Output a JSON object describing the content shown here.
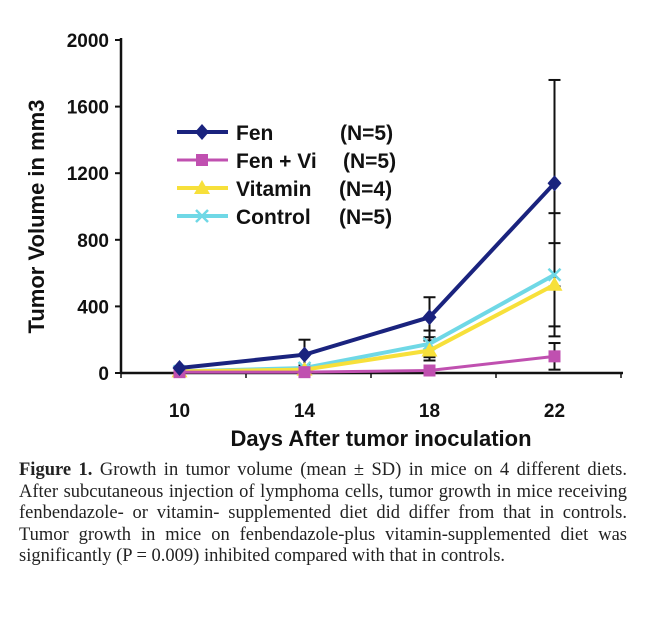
{
  "chart_data": {
    "type": "line",
    "title": "",
    "xlabel": "Days After tumor inoculation",
    "ylabel": "Tumor Volume in mm3",
    "categories": [
      "10",
      "14",
      "18",
      "22"
    ],
    "ylim": [
      0,
      2000
    ],
    "yticks": [
      "0",
      "400",
      "800",
      "1200",
      "1600",
      "2000"
    ],
    "legend_position": "top-left",
    "series": [
      {
        "name": "Fen",
        "n": "(N=5)",
        "color": "#1a237e",
        "marker": "diamond",
        "values": [
          30,
          110,
          335,
          1140
        ],
        "sd": [
          10,
          90,
          120,
          620
        ]
      },
      {
        "name": "Fen + Vi",
        "n": "(N=5)",
        "color": "#c050b0",
        "marker": "square",
        "values": [
          5,
          5,
          15,
          100
        ],
        "sd": [
          3,
          5,
          20,
          80
        ]
      },
      {
        "name": "Vitamin",
        "n": "(N=4)",
        "color": "#f7e03a",
        "marker": "triangle",
        "values": [
          10,
          20,
          135,
          530
        ],
        "sd": [
          5,
          10,
          60,
          250
        ]
      },
      {
        "name": "Control",
        "n": "(N=5)",
        "color": "#6fd8e6",
        "marker": "x",
        "values": [
          10,
          30,
          175,
          590
        ],
        "sd": [
          5,
          15,
          80,
          370
        ]
      }
    ]
  },
  "caption": {
    "label": "Figure 1.",
    "text": " Growth in tumor volume (mean ± SD) in mice on 4 different diets. After subcutaneous injection of lymphoma cells, tumor growth in mice receiving fenbendazole- or vitamin- supplemented diet did differ from that in controls. Tumor growth in mice on fenbendazole-plus vitamin-supplemented diet was significantly (P = 0.009) inhibited compared with that in controls."
  }
}
